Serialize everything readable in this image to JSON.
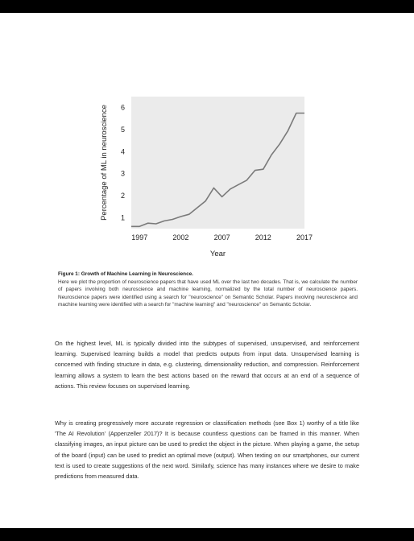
{
  "chart_data": {
    "type": "line",
    "xlabel": "Year",
    "ylabel": "Percentage of ML in neuroscience",
    "xlim": [
      1996,
      2017
    ],
    "ylim": [
      0.5,
      6.5
    ],
    "x_ticks": [
      1997,
      2002,
      2007,
      2012,
      2017
    ],
    "y_ticks": [
      1,
      2,
      3,
      4,
      5,
      6
    ],
    "grid": false,
    "line_color": "#7a7a7a",
    "plot_background": "#ebebeb",
    "series": [
      {
        "x": [
          1996,
          1997,
          1998,
          1999,
          2000,
          2001,
          2002,
          2003,
          2004,
          2005,
          2006,
          2007,
          2008,
          2009,
          2010,
          2011,
          2012,
          2013,
          2014,
          2015,
          2016,
          2017
        ],
        "values": [
          0.6,
          0.6,
          0.75,
          0.72,
          0.85,
          0.92,
          1.05,
          1.15,
          1.45,
          1.75,
          2.35,
          1.95,
          2.3,
          2.5,
          2.7,
          3.15,
          3.2,
          3.85,
          4.35,
          4.95,
          5.75,
          5.75
        ]
      }
    ]
  },
  "figure": {
    "caption_title": "Figure 1: Growth of Machine Learning in Neuroscience.",
    "caption_body": "Here we plot the proportion of neuroscience papers that have used ML over the last two decades. That is, we calculate the number of papers involving both neuroscience and machine learning, normalized by the total number of neuroscience papers. Neuroscience papers were identified using a search for \"neuroscience\" on Semantic Scholar. Papers involving neuroscience and machine learning were identified with a search for \"machine learning\" and \"neuroscience\" on Semantic Scholar."
  },
  "body": {
    "paragraph1": "On the highest level, ML is typically divided into the subtypes of supervised, unsupervised, and reinforcement learning. Supervised learning builds a model that predicts outputs from input data. Unsupervised learning is concerned with finding structure in data, e.g. clustering, dimensionality reduction, and compression. Reinforcement learning allows a system to learn the best actions based on the reward that occurs at an end of a sequence of actions. This review focuses on supervised learning.",
    "paragraph2": "Why is creating progressively more accurate regression or classification methods (see Box 1) worthy of a title like 'The AI Revolution' (Appenzeller 2017)? It is because countless questions can be framed in this manner. When classifying images, an input picture can be used to predict the object in the picture. When playing a game, the setup of the board (input) can be used to predict an optimal move (output). When texting on our smartphones, our current text is used to create suggestions of the next word. Similarly, science has many instances where we desire to make predictions from measured data."
  }
}
